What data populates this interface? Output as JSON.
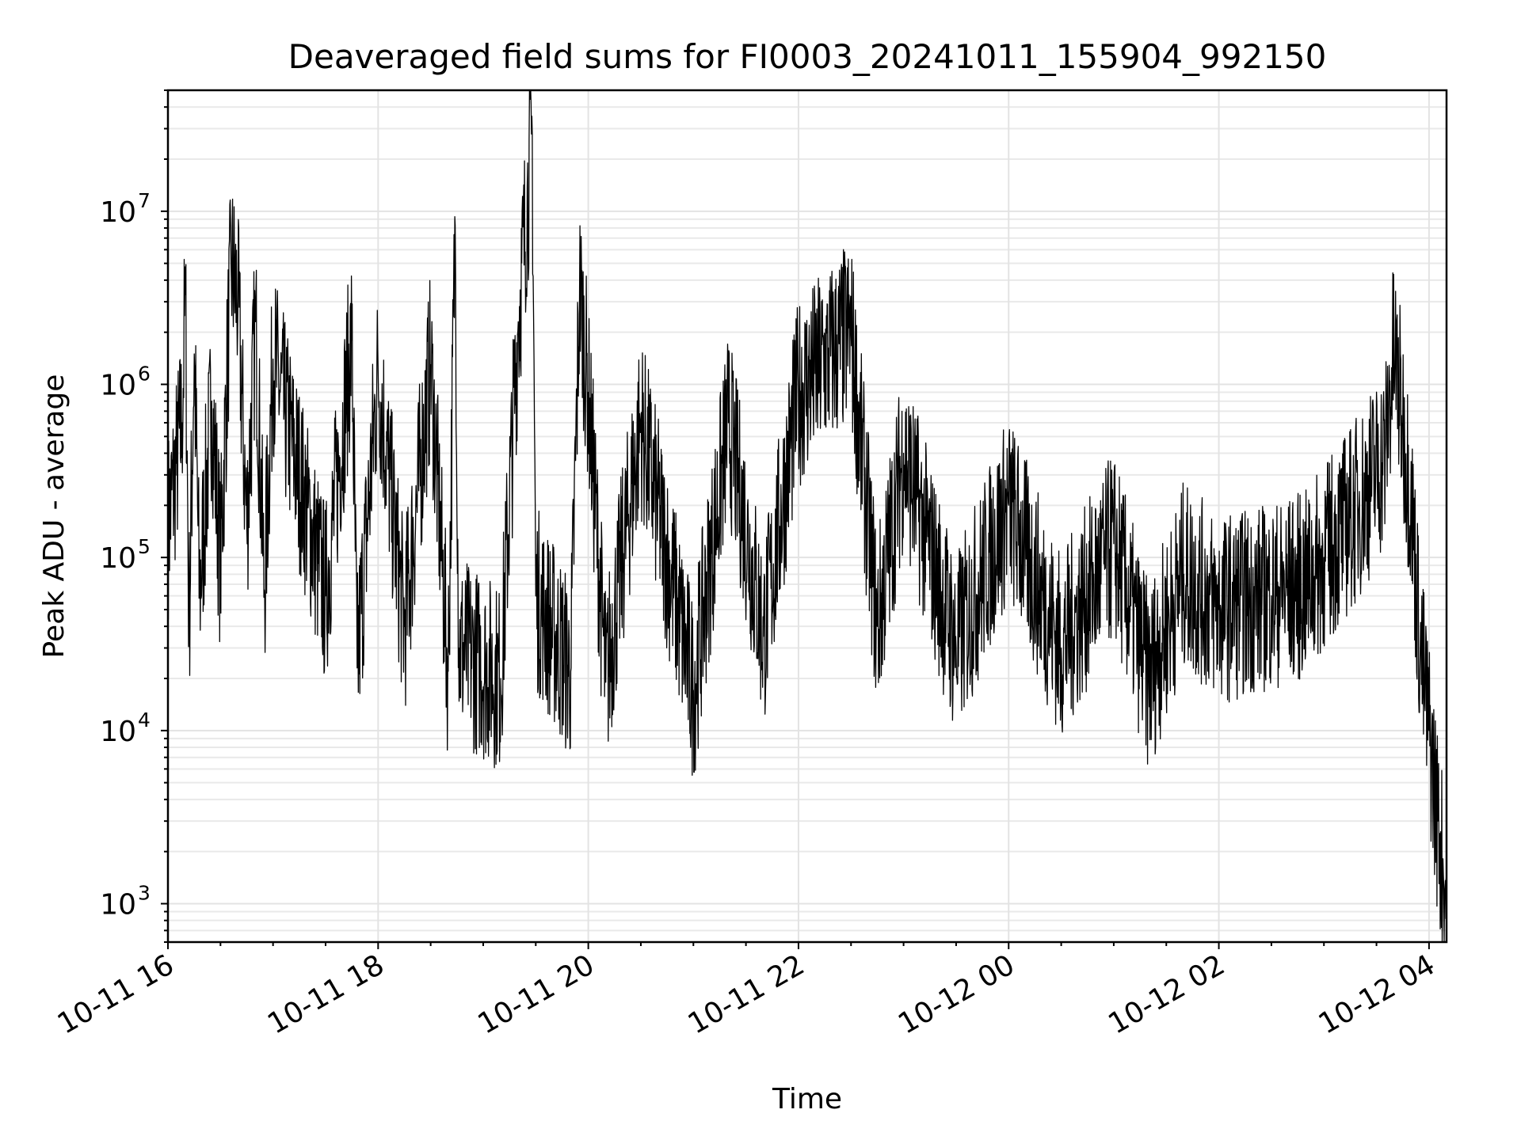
{
  "chart_data": {
    "type": "line",
    "title": "Deaveraged field sums for FI0003_20241011_155904_992150",
    "xlabel": "Time",
    "ylabel": "Peak ADU - average",
    "yscale": "log",
    "xlim": [
      "10-11 16:00",
      "10-12 04:10"
    ],
    "ylim": [
      600,
      50000000
    ],
    "x_ticks": [
      "10-11 16",
      "10-11 18",
      "10-11 20",
      "10-11 22",
      "10-12 00",
      "10-12 02",
      "10-12 04"
    ],
    "y_ticks": [
      {
        "base": "10",
        "exp": "3",
        "value": 1000
      },
      {
        "base": "10",
        "exp": "4",
        "value": 10000
      },
      {
        "base": "10",
        "exp": "5",
        "value": 100000
      },
      {
        "base": "10",
        "exp": "6",
        "value": 1000000
      },
      {
        "base": "10",
        "exp": "7",
        "value": 10000000
      }
    ],
    "grid": true,
    "legend": "none",
    "series": [
      {
        "color": "#000000",
        "points": [
          [
            "10-11 16:00",
            150000
          ],
          [
            "10-11 16:05",
            350000
          ],
          [
            "10-11 16:08",
            600000
          ],
          [
            "10-11 16:10",
            3300000
          ],
          [
            "10-11 16:12",
            38000
          ],
          [
            "10-11 16:15",
            1500000
          ],
          [
            "10-11 16:18",
            60000
          ],
          [
            "10-11 16:25",
            800000
          ],
          [
            "10-11 16:30",
            90000
          ],
          [
            "10-11 16:36",
            5000000
          ],
          [
            "10-11 16:40",
            3000000
          ],
          [
            "10-11 16:45",
            150000
          ],
          [
            "10-11 16:50",
            2300000
          ],
          [
            "10-11 16:55",
            65000
          ],
          [
            "10-11 17:00",
            1400000
          ],
          [
            "10-11 17:30",
            60000
          ],
          [
            "10-11 17:45",
            1800000
          ],
          [
            "10-11 17:48",
            23000
          ],
          [
            "10-11 18:00",
            1200000
          ],
          [
            "10-11 18:15",
            40000
          ],
          [
            "10-11 18:30",
            1300000
          ],
          [
            "10-11 18:40",
            22000
          ],
          [
            "10-11 18:44",
            8300000
          ],
          [
            "10-11 18:46",
            30000
          ],
          [
            "10-11 19:10",
            20000
          ],
          [
            "10-11 19:20",
            2300000
          ],
          [
            "10-11 19:28",
            28000000
          ],
          [
            "10-11 19:30",
            60000
          ],
          [
            "10-11 19:50",
            22000
          ],
          [
            "10-11 19:55",
            3600000
          ],
          [
            "10-11 20:00",
            900000
          ],
          [
            "10-11 20:10",
            19000
          ],
          [
            "10-11 20:30",
            600000
          ],
          [
            "10-11 21:00",
            17000
          ],
          [
            "10-11 21:20",
            600000
          ],
          [
            "10-11 21:40",
            35000
          ],
          [
            "10-11 22:00",
            900000
          ],
          [
            "10-11 22:30",
            2000000
          ],
          [
            "10-11 22:45",
            40000
          ],
          [
            "10-11 23:00",
            400000
          ],
          [
            "10-11 23:30",
            30000
          ],
          [
            "10-12 00:00",
            200000
          ],
          [
            "10-12 00:30",
            30000
          ],
          [
            "10-12 01:00",
            120000
          ],
          [
            "10-12 01:20",
            20000
          ],
          [
            "10-12 01:40",
            80000
          ],
          [
            "10-12 02:00",
            50000
          ],
          [
            "10-12 02:30",
            60000
          ],
          [
            "10-12 02:50",
            70000
          ],
          [
            "10-12 03:00",
            100000
          ],
          [
            "10-12 03:20",
            200000
          ],
          [
            "10-12 03:35",
            400000
          ],
          [
            "10-12 03:40",
            1600000
          ],
          [
            "10-12 03:45",
            600000
          ],
          [
            "10-12 03:50",
            200000
          ],
          [
            "10-12 03:55",
            30000
          ],
          [
            "10-12 04:00",
            10000
          ],
          [
            "10-12 04:05",
            3000
          ],
          [
            "10-12 04:10",
            1000
          ]
        ]
      }
    ]
  }
}
